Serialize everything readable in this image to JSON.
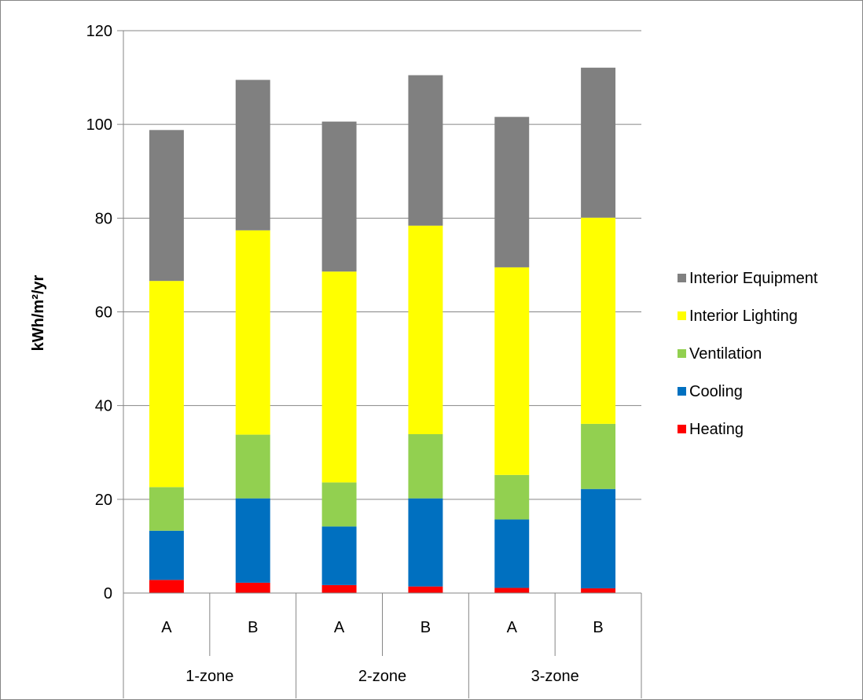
{
  "chart_data": {
    "type": "bar",
    "stacked": true,
    "ylabel": "kWh/m²/yr",
    "ylim": [
      0,
      120
    ],
    "yticks": [
      0,
      20,
      40,
      60,
      80,
      100,
      120
    ],
    "grid": true,
    "legend_position": "right",
    "groups": [
      {
        "label": "1-zone",
        "categories": [
          "A",
          "B"
        ]
      },
      {
        "label": "2-zone",
        "categories": [
          "A",
          "B"
        ]
      },
      {
        "label": "3-zone",
        "categories": [
          "A",
          "B"
        ]
      }
    ],
    "series": [
      {
        "name": "Heating",
        "color": "#ff0000",
        "values": [
          2.8,
          2.2,
          1.7,
          1.4,
          1.1,
          1.0
        ]
      },
      {
        "name": "Cooling",
        "color": "#0070c0",
        "values": [
          10.5,
          18.0,
          12.5,
          18.8,
          14.6,
          21.2
        ]
      },
      {
        "name": "Ventilation",
        "color": "#92d050",
        "values": [
          9.3,
          13.6,
          9.4,
          13.7,
          9.5,
          13.9
        ]
      },
      {
        "name": "Interior Lighting",
        "color": "#ffff00",
        "values": [
          44.0,
          43.6,
          45.0,
          44.5,
          44.3,
          44.0
        ]
      },
      {
        "name": "Interior Equipment",
        "color": "#808080",
        "values": [
          32.2,
          32.1,
          32.0,
          32.1,
          32.1,
          32.0
        ]
      }
    ]
  }
}
